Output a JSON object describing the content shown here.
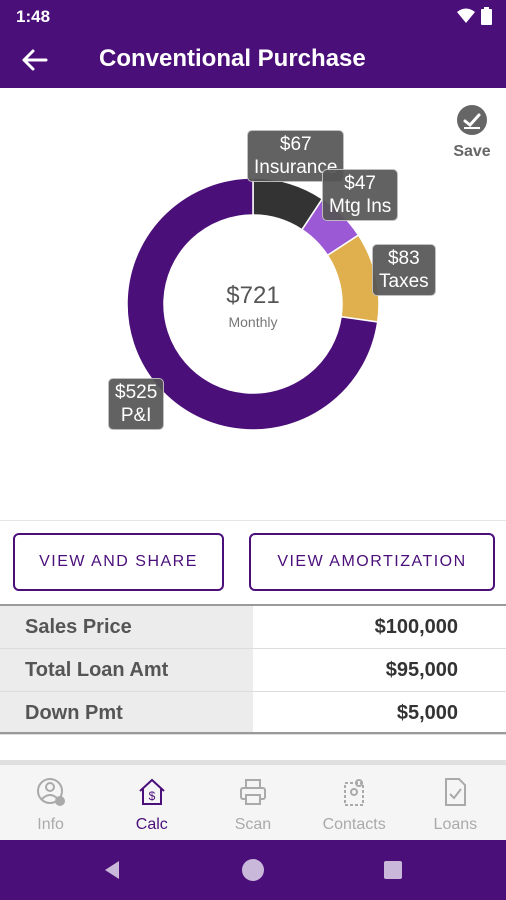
{
  "status": {
    "time": "1:48"
  },
  "appbar": {
    "title": "Conventional Purchase",
    "back_icon": "arrow-left-icon"
  },
  "save": {
    "label": "Save",
    "icon": "check-circle-icon"
  },
  "chart_data": {
    "type": "pie",
    "donut": true,
    "center_value": "$721",
    "center_label": "Monthly",
    "slices": [
      {
        "label": "Insurance",
        "value": 67,
        "value_text": "$67",
        "color": "#333333"
      },
      {
        "label": "Mtg Ins",
        "value": 47,
        "value_text": "$47",
        "color": "#9b59d6"
      },
      {
        "label": "Taxes",
        "value": 83,
        "value_text": "$83",
        "color": "#e0b04e"
      },
      {
        "label": "P&I",
        "value": 525,
        "value_text": "$525",
        "color": "#4b0f7a"
      }
    ]
  },
  "buttons": {
    "view_share": "VIEW AND SHARE",
    "view_amortization": "VIEW AMORTIZATION"
  },
  "summary": [
    {
      "label": "Sales Price",
      "value": "$100,000"
    },
    {
      "label": "Total Loan Amt",
      "value": "$95,000"
    },
    {
      "label": "Down Pmt",
      "value": "$5,000"
    }
  ],
  "nav": [
    {
      "label": "Info",
      "icon": "info-person-icon",
      "active": false
    },
    {
      "label": "Calc",
      "icon": "house-dollar-icon",
      "active": true
    },
    {
      "label": "Scan",
      "icon": "printer-icon",
      "active": false
    },
    {
      "label": "Contacts",
      "icon": "contacts-icon",
      "active": false
    },
    {
      "label": "Loans",
      "icon": "document-check-icon",
      "active": false
    }
  ],
  "colors": {
    "primary": "#4b0f7a",
    "accent_gold": "#e0b04e",
    "accent_lavender": "#9b59d6"
  }
}
